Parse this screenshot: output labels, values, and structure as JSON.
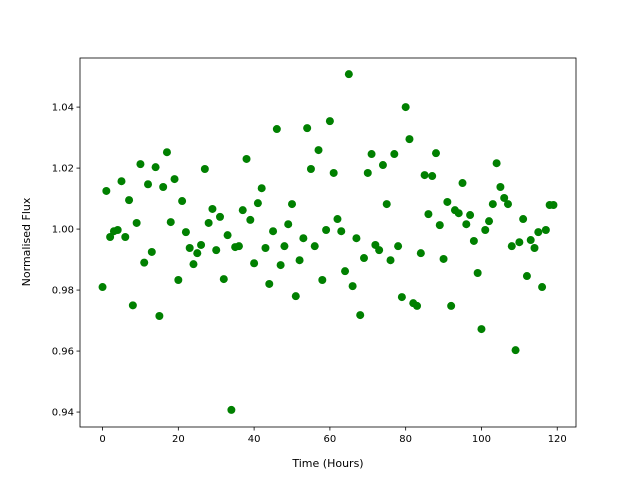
{
  "chart_data": {
    "type": "scatter",
    "xlabel": "Time (Hours)",
    "ylabel": "Normalised Flux",
    "color": "#008000",
    "xlim": [
      -5.95,
      124.95
    ],
    "ylim": [
      0.9351,
      1.0561
    ],
    "xticks": [
      0,
      20,
      40,
      60,
      80,
      100,
      120
    ],
    "yticks": [
      0.94,
      0.96,
      0.98,
      {
        "value": 1.0,
        "label": "1.00"
      },
      1.02,
      1.04
    ],
    "x": [
      0,
      1,
      2,
      3,
      4,
      5,
      6,
      7,
      8,
      9,
      10,
      11,
      12,
      13,
      14,
      15,
      16,
      17,
      18,
      19,
      20,
      21,
      22,
      23,
      24,
      25,
      26,
      27,
      28,
      29,
      30,
      31,
      32,
      33,
      34,
      35,
      36,
      37,
      38,
      39,
      40,
      41,
      42,
      43,
      44,
      45,
      46,
      47,
      48,
      49,
      50,
      51,
      52,
      53,
      54,
      55,
      56,
      57,
      58,
      59,
      60,
      61,
      62,
      63,
      64,
      65,
      66,
      67,
      68,
      69,
      70,
      71,
      72,
      73,
      74,
      75,
      76,
      77,
      78,
      79,
      80,
      81,
      82,
      83,
      84,
      85,
      86,
      87,
      88,
      89,
      90,
      91,
      92,
      93,
      94,
      95,
      96,
      97,
      98,
      99,
      100,
      101,
      102,
      103,
      104,
      105,
      106,
      107,
      108,
      109,
      110,
      111,
      112,
      113,
      114,
      115,
      116,
      117,
      118,
      119
    ],
    "values": [
      0.981,
      1.0125,
      0.9974,
      0.9993,
      0.9997,
      1.0157,
      0.9974,
      1.0095,
      0.975,
      1.002,
      1.0213,
      0.989,
      1.0147,
      0.9925,
      1.0203,
      0.9715,
      1.0138,
      1.0252,
      1.0023,
      1.0164,
      0.9833,
      1.0092,
      0.999,
      0.9938,
      0.9885,
      0.9921,
      0.9948,
      1.0197,
      1.002,
      1.0066,
      0.9931,
      1.004,
      0.9836,
      0.998,
      0.9407,
      0.9941,
      0.9944,
      1.0062,
      1.023,
      1.003,
      0.9888,
      1.0085,
      1.0134,
      0.9938,
      0.982,
      0.9993,
      1.0328,
      0.9882,
      0.9944,
      1.0016,
      1.0082,
      0.978,
      0.9898,
      0.997,
      1.0331,
      1.0197,
      0.9944,
      1.0259,
      0.9833,
      0.9997,
      1.0354,
      1.0184,
      1.0033,
      0.9993,
      0.9862,
      1.0508,
      0.9813,
      0.997,
      0.9718,
      0.9905,
      1.0184,
      1.0246,
      0.9948,
      0.9931,
      1.021,
      1.0082,
      0.9898,
      1.0246,
      0.9944,
      0.9777,
      1.04,
      1.0295,
      0.9757,
      0.9748,
      0.9921,
      1.0177,
      1.0049,
      1.0174,
      1.0249,
      1.0013,
      0.9902,
      1.0089,
      0.9748,
      1.0062,
      1.0052,
      1.0151,
      1.0016,
      1.0046,
      0.9961,
      0.9856,
      0.9672,
      0.9997,
      1.0026,
      1.0082,
      1.0216,
      1.0138,
      1.0102,
      1.0082,
      0.9944,
      0.9603,
      0.9957,
      1.0033,
      0.9846,
      0.9964,
      0.9938,
      0.999,
      0.981,
      0.9997,
      1.0079,
      1.0079
    ]
  }
}
